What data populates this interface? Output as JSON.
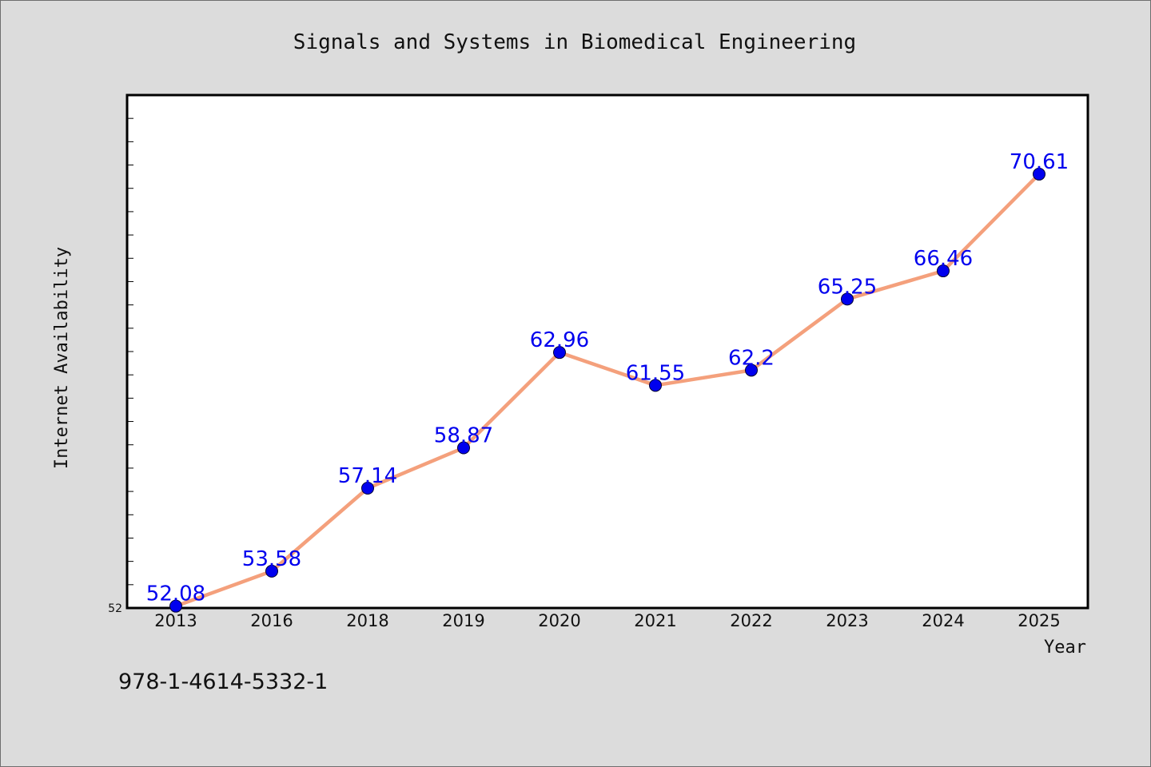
{
  "footer": {
    "isbn": "978-1-4614-5332-1"
  },
  "colors": {
    "background": "#dcdcdc",
    "plot_background": "#ffffff",
    "line": "#f4a07c",
    "marker": "#0000ee",
    "data_label": "#0000ee"
  },
  "chart_data": {
    "type": "line",
    "title": "Signals and Systems in Biomedical Engineering",
    "xlabel": "Year",
    "ylabel": "Internet Availability",
    "categories": [
      "2013",
      "2016",
      "2018",
      "2019",
      "2020",
      "2021",
      "2022",
      "2023",
      "2024",
      "2025"
    ],
    "values": [
      52.08,
      53.58,
      57.14,
      58.87,
      62.96,
      61.55,
      62.2,
      65.25,
      66.46,
      70.61
    ],
    "data_labels": [
      "52.08",
      "53.58",
      "57.14",
      "58.87",
      "62.96",
      "61.55",
      "62.2",
      "65.25",
      "66.46",
      "70.61"
    ],
    "y_tick_labels": [
      "52"
    ],
    "ylim": [
      52,
      74
    ],
    "y_minor_tick_step": 1,
    "grid": false,
    "legend": "none",
    "marker": "circle"
  }
}
